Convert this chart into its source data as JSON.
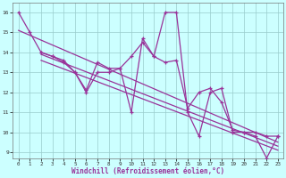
{
  "line_color": "#993399",
  "bg_color": "#ccffff",
  "grid_color": "#99cccc",
  "xlabel": "Windchill (Refroidissement éolien,°C)",
  "xlim": [
    -0.5,
    23.5
  ],
  "ylim": [
    8.7,
    16.5
  ],
  "yticks": [
    9,
    10,
    11,
    12,
    13,
    14,
    15,
    16
  ],
  "xticks": [
    0,
    1,
    2,
    3,
    4,
    5,
    6,
    7,
    8,
    9,
    10,
    11,
    12,
    13,
    14,
    15,
    16,
    17,
    18,
    19,
    20,
    21,
    22,
    23
  ],
  "series_main": {
    "x": [
      0,
      1,
      2,
      3,
      4,
      5,
      6,
      7,
      8,
      9,
      10,
      11,
      12,
      13,
      14,
      15,
      16,
      17,
      18,
      19,
      20,
      21,
      22,
      23
    ],
    "y": [
      16,
      15,
      14,
      13.8,
      13.5,
      13,
      12,
      13,
      13,
      13.2,
      11,
      14.7,
      13.8,
      16,
      16,
      11,
      9.8,
      12,
      12.2,
      10,
      10,
      9.8,
      8.7,
      9.8
    ]
  },
  "series_short1": {
    "x": [
      2,
      3,
      4,
      5,
      6,
      7,
      8,
      9,
      10,
      11,
      12,
      13,
      14,
      15,
      16,
      17,
      18,
      19,
      20,
      21,
      22,
      23
    ],
    "y": [
      14,
      13.8,
      13.6,
      13,
      12.1,
      13.5,
      13.2,
      13.2,
      13.8,
      14.5,
      13.8,
      13.5,
      13.6,
      11.2,
      12,
      12.2,
      11.5,
      10.1,
      10,
      10,
      9.8,
      9.8
    ]
  },
  "reg1": {
    "x": [
      0,
      23
    ],
    "y": [
      15.1,
      9.5
    ]
  },
  "reg2": {
    "x": [
      2,
      23
    ],
    "y": [
      13.9,
      9.3
    ]
  },
  "reg3": {
    "x": [
      2,
      23
    ],
    "y": [
      13.6,
      9.1
    ]
  }
}
